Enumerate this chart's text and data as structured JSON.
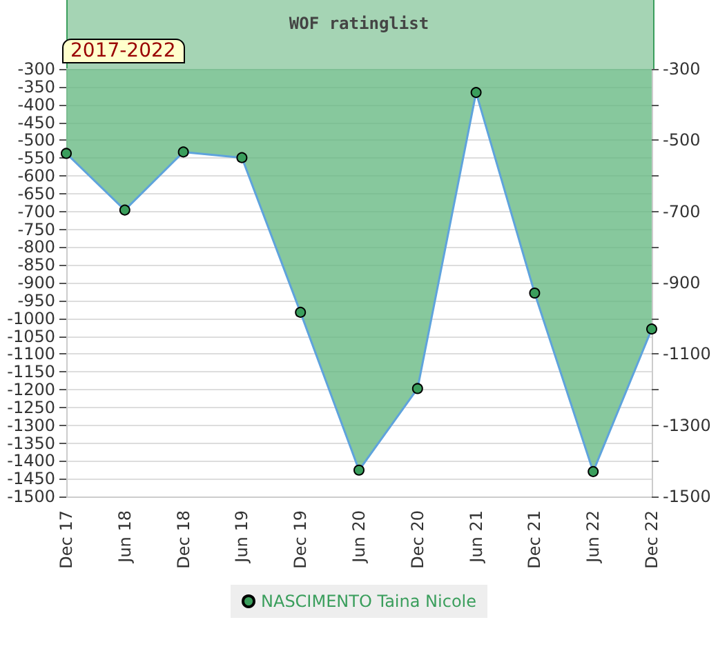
{
  "chart_data": {
    "type": "area",
    "title": "WOF ratinglist",
    "annotations": [
      "2017-2022"
    ],
    "categories": [
      "Dec 17",
      "Jun 18",
      "Dec 18",
      "Jun 19",
      "Dec 19",
      "Jun 20",
      "Dec 20",
      "Jun 21",
      "Dec 21",
      "Jun 22",
      "Dec 22"
    ],
    "series": [
      {
        "name": "NASCIMENTO Taina Nicole",
        "color": "#3a9e5c",
        "values": [
          -537,
          -696,
          -533,
          -549,
          -983,
          -1426,
          -1197,
          -366,
          -929,
          -1430,
          -1030
        ]
      }
    ],
    "ylim": [
      -1500,
      -300
    ],
    "yticks": [
      -1500,
      -1450,
      -1400,
      -1350,
      -1300,
      -1250,
      -1200,
      -1150,
      -1100,
      -1050,
      -1000,
      -950,
      -900,
      -850,
      -800,
      -750,
      -700,
      -650,
      -600,
      -550,
      -500,
      -450,
      -400,
      -350,
      -300
    ],
    "y2lim": [
      -1500,
      -300
    ],
    "y2ticks": [
      -1500,
      {
        "value": -1400,
        "label": null
      },
      -1300,
      {
        "value": -1200,
        "label": null
      },
      -1100,
      {
        "value": -1000,
        "label": null
      },
      -900,
      {
        "value": -800,
        "label": null
      },
      -700,
      {
        "value": -600,
        "label": null
      },
      -500,
      {
        "value": -400,
        "label": null
      },
      -300
    ],
    "grid": "y",
    "legend": "bottom",
    "marker": "circle"
  }
}
